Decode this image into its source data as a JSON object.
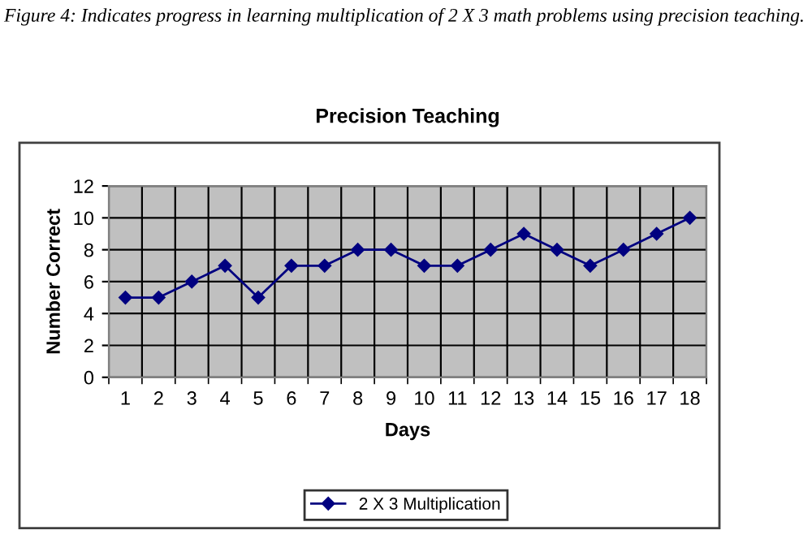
{
  "chart_data": {
    "type": "line",
    "title": "Precision Teaching",
    "xlabel": "Days",
    "ylabel": "Number Correct",
    "annotations": [
      "Figure 4: Indicates progress in learning multiplication of 2 X 3 math problems using precision teaching."
    ],
    "categories": [
      "1",
      "2",
      "3",
      "4",
      "5",
      "6",
      "7",
      "8",
      "9",
      "10",
      "11",
      "12",
      "13",
      "14",
      "15",
      "16",
      "17",
      "18"
    ],
    "series": [
      {
        "name": "2 X 3 Multiplication",
        "color": "#000080",
        "values": [
          5,
          5,
          6,
          7,
          5,
          7,
          7,
          8,
          8,
          7,
          7,
          8,
          9,
          8,
          7,
          8,
          9,
          10
        ]
      }
    ],
    "ylim": [
      0,
      12
    ],
    "yticks": [
      0,
      2,
      4,
      6,
      8,
      10,
      12
    ],
    "grid": true,
    "legend": "bottom",
    "marker": "diamond",
    "line_style": "solid"
  }
}
